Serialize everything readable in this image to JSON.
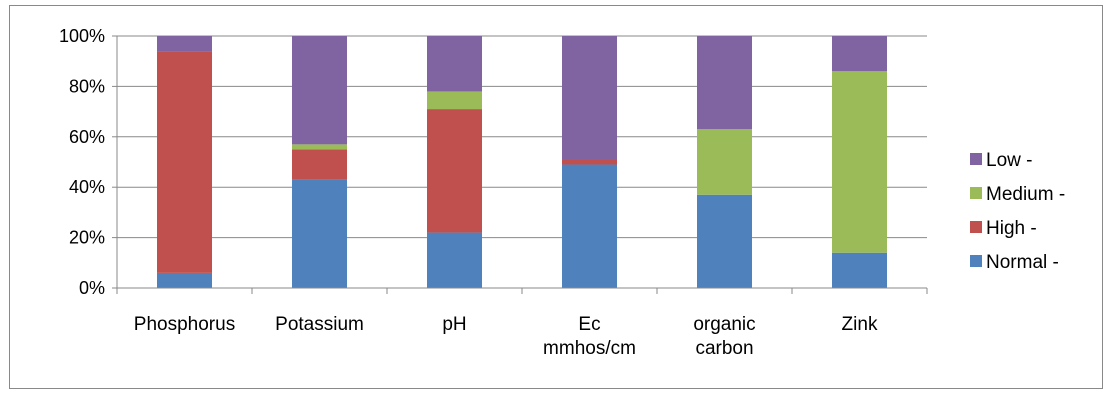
{
  "chart_data": {
    "type": "bar",
    "stacked": true,
    "percent": true,
    "categories": [
      [
        "Phosphorus"
      ],
      [
        "Potassium"
      ],
      [
        "pH"
      ],
      [
        "Ec",
        "mmhos/cm"
      ],
      [
        "organic",
        "carbon"
      ],
      [
        "Zink"
      ]
    ],
    "series": [
      {
        "name": "Normal -",
        "color": "#4F81BD",
        "values": [
          6,
          43,
          22,
          49,
          37,
          14
        ]
      },
      {
        "name": "High -",
        "color": "#C0504D",
        "values": [
          88,
          12,
          49,
          2,
          0,
          0
        ]
      },
      {
        "name": "Medium -",
        "color": "#9BBB59",
        "values": [
          0,
          2,
          7,
          0,
          26,
          72
        ]
      },
      {
        "name": "Low -",
        "color": "#8064A2",
        "values": [
          6,
          43,
          22,
          49,
          37,
          14
        ]
      }
    ],
    "y_ticks": [
      "0%",
      "20%",
      "40%",
      "60%",
      "80%",
      "100%"
    ],
    "ylim": [
      0,
      100
    ],
    "grid": true,
    "legend": "right",
    "legend_order": [
      "Low -",
      "Medium -",
      "High -",
      "Normal -"
    ]
  }
}
